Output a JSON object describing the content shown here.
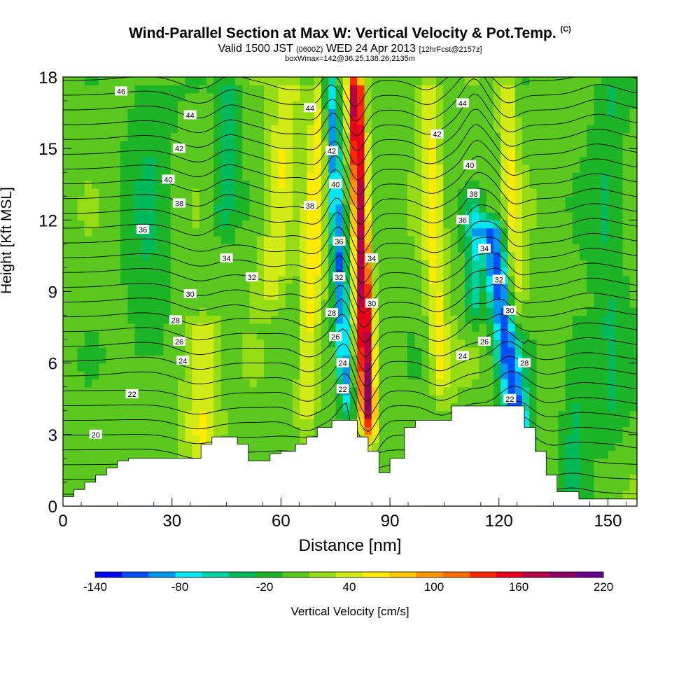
{
  "header": {
    "title": "Wind-Parallel Section at Max W: Vertical Velocity & Pot.Temp.",
    "title_mark": "(C)",
    "valid_prefix": "Valid 1500 JST",
    "valid_utc": "(0600Z)",
    "valid_date": "WED 24 Apr 2013",
    "forecast": "[12hrFcst@2157z]",
    "box_info": "boxWmax=142@36.25,138.26,2135m"
  },
  "chart_data": {
    "type": "heatmap",
    "xlabel": "Distance [nm]",
    "ylabel": "Height [Kft MSL]",
    "xlim": [
      0,
      158
    ],
    "ylim": [
      0,
      18
    ],
    "x_ticks": [
      "0",
      "30",
      "60",
      "90",
      "120",
      "150"
    ],
    "y_ticks": [
      "0",
      "3",
      "6",
      "9",
      "12",
      "15",
      "18"
    ],
    "colorbar": {
      "label": "Vertical Velocity [cm/s]",
      "ticks": [
        "-140",
        "-80",
        "-20",
        "40",
        "100",
        "160",
        "220"
      ],
      "levels": [
        -140,
        -120,
        -100,
        -80,
        -60,
        -40,
        -20,
        0,
        20,
        40,
        60,
        80,
        100,
        120,
        140,
        160,
        180,
        200,
        220
      ],
      "colors": [
        "#0000ee",
        "#0050f5",
        "#0096f0",
        "#00e6f0",
        "#00d2a0",
        "#00b95a",
        "#1eb428",
        "#5ac81e",
        "#96dc14",
        "#d2eb14",
        "#ffeb00",
        "#ffc800",
        "#ff9600",
        "#ff6e00",
        "#ff2800",
        "#e6001e",
        "#b4004b",
        "#8c0064",
        "#64008c"
      ]
    },
    "terrain": [
      [
        0,
        0.4
      ],
      [
        3,
        0.4
      ],
      [
        3,
        0.7
      ],
      [
        6,
        0.7
      ],
      [
        6,
        1.0
      ],
      [
        9,
        1.0
      ],
      [
        9,
        1.3
      ],
      [
        12,
        1.3
      ],
      [
        12,
        1.6
      ],
      [
        15,
        1.6
      ],
      [
        15,
        1.9
      ],
      [
        18,
        1.9
      ],
      [
        18,
        2.0
      ],
      [
        38,
        2.0
      ],
      [
        38,
        2.6
      ],
      [
        41,
        2.6
      ],
      [
        41,
        2.9
      ],
      [
        48,
        2.9
      ],
      [
        48,
        2.6
      ],
      [
        51,
        2.6
      ],
      [
        51,
        1.9
      ],
      [
        57,
        1.9
      ],
      [
        57,
        2.2
      ],
      [
        60,
        2.2
      ],
      [
        60,
        2.3
      ],
      [
        64,
        2.3
      ],
      [
        64,
        2.6
      ],
      [
        67,
        2.6
      ],
      [
        67,
        2.9
      ],
      [
        70,
        2.9
      ],
      [
        70,
        3.3
      ],
      [
        74,
        3.3
      ],
      [
        74,
        3.6
      ],
      [
        81,
        3.6
      ],
      [
        81,
        2.9
      ],
      [
        84,
        2.9
      ],
      [
        84,
        2.3
      ],
      [
        87,
        2.3
      ],
      [
        87,
        1.4
      ],
      [
        90,
        1.4
      ],
      [
        90,
        2.0
      ],
      [
        94,
        2.0
      ],
      [
        94,
        3.3
      ],
      [
        97,
        3.3
      ],
      [
        97,
        3.6
      ],
      [
        107,
        3.6
      ],
      [
        107,
        4.2
      ],
      [
        127,
        4.2
      ],
      [
        127,
        3.3
      ],
      [
        130,
        3.3
      ],
      [
        130,
        2.3
      ],
      [
        133,
        2.3
      ],
      [
        133,
        1.3
      ],
      [
        136,
        1.3
      ],
      [
        136,
        0.6
      ],
      [
        142,
        0.6
      ],
      [
        142,
        0.3
      ],
      [
        158,
        0.3
      ]
    ],
    "velocity_features": [
      {
        "x": 84,
        "z0": 3.5,
        "z1": 18,
        "tilt": -0.25,
        "width": 2.2,
        "w": 190
      },
      {
        "x": 78,
        "z0": 4.5,
        "z1": 18,
        "tilt": -0.35,
        "width": 2.0,
        "w": -110
      },
      {
        "x": 126,
        "z0": 2.5,
        "z1": 12,
        "tilt": -0.9,
        "width": 3.5,
        "w": -120
      },
      {
        "x": 38,
        "z0": 2.5,
        "z1": 8,
        "tilt": 0,
        "width": 5,
        "w": 55
      },
      {
        "x": 57,
        "z0": 9,
        "z1": 18,
        "tilt": 0.6,
        "width": 4,
        "w": 50
      },
      {
        "x": 67,
        "z0": 4,
        "z1": 18,
        "tilt": 0.3,
        "width": 3,
        "w": 60
      },
      {
        "x": 104,
        "z0": 5,
        "z1": 18,
        "tilt": -0.3,
        "width": 3,
        "w": 55
      },
      {
        "x": 125,
        "z0": 8,
        "z1": 18,
        "tilt": -0.3,
        "width": 2.5,
        "w": 50
      },
      {
        "x": 44,
        "z0": 12,
        "z1": 18,
        "tilt": 0.3,
        "width": 3,
        "w": -50
      },
      {
        "x": 23,
        "z0": 6,
        "z1": 18,
        "tilt": 0.1,
        "width": 7,
        "w": -25
      },
      {
        "x": 150,
        "z0": 3,
        "z1": 18,
        "tilt": 0,
        "width": 5,
        "w": -30
      },
      {
        "x": 140,
        "z0": 1,
        "z1": 8,
        "tilt": 0.4,
        "width": 4,
        "w": -35
      },
      {
        "x": 113,
        "z0": 8,
        "z1": 13,
        "tilt": 0,
        "width": 2,
        "w": -60
      }
    ],
    "isentropes": [
      16,
      17,
      18,
      19,
      20,
      21,
      22,
      23,
      24,
      25,
      26,
      27,
      28,
      29,
      30,
      31,
      32,
      33,
      34,
      35,
      36,
      37,
      38,
      39,
      40,
      41,
      42,
      43,
      44,
      45,
      46,
      47,
      48
    ],
    "contour_labels": [
      {
        "text": "46",
        "x": 16,
        "z": 17.4
      },
      {
        "text": "44",
        "x": 35,
        "z": 16.4
      },
      {
        "text": "44",
        "x": 68,
        "z": 16.7
      },
      {
        "text": "44",
        "x": 110,
        "z": 16.9
      },
      {
        "text": "42",
        "x": 32,
        "z": 15.0
      },
      {
        "text": "42",
        "x": 74,
        "z": 14.9
      },
      {
        "text": "42",
        "x": 103,
        "z": 15.6
      },
      {
        "text": "40",
        "x": 29,
        "z": 13.7
      },
      {
        "text": "40",
        "x": 75,
        "z": 13.5
      },
      {
        "text": "40",
        "x": 112,
        "z": 14.3
      },
      {
        "text": "38",
        "x": 32,
        "z": 12.7
      },
      {
        "text": "38",
        "x": 68,
        "z": 12.6
      },
      {
        "text": "38",
        "x": 113,
        "z": 13.1
      },
      {
        "text": "36",
        "x": 22,
        "z": 11.6
      },
      {
        "text": "36",
        "x": 76,
        "z": 11.1
      },
      {
        "text": "36",
        "x": 110,
        "z": 12.0
      },
      {
        "text": "34",
        "x": 45,
        "z": 10.4
      },
      {
        "text": "34",
        "x": 85,
        "z": 10.4
      },
      {
        "text": "34",
        "x": 116,
        "z": 10.8
      },
      {
        "text": "32",
        "x": 52,
        "z": 9.6
      },
      {
        "text": "32",
        "x": 76,
        "z": 9.6
      },
      {
        "text": "32",
        "x": 120,
        "z": 9.5
      },
      {
        "text": "30",
        "x": 35,
        "z": 8.9
      },
      {
        "text": "30",
        "x": 85,
        "z": 8.5
      },
      {
        "text": "30",
        "x": 123,
        "z": 8.2
      },
      {
        "text": "28",
        "x": 31,
        "z": 7.8
      },
      {
        "text": "28",
        "x": 74,
        "z": 8.1
      },
      {
        "text": "28",
        "x": 127,
        "z": 6.0
      },
      {
        "text": "26",
        "x": 32,
        "z": 6.9
      },
      {
        "text": "26",
        "x": 75,
        "z": 7.1
      },
      {
        "text": "26",
        "x": 116,
        "z": 6.9
      },
      {
        "text": "24",
        "x": 33,
        "z": 6.1
      },
      {
        "text": "24",
        "x": 77,
        "z": 6.0
      },
      {
        "text": "24",
        "x": 110,
        "z": 6.3
      },
      {
        "text": "22",
        "x": 19,
        "z": 4.7
      },
      {
        "text": "22",
        "x": 77,
        "z": 4.9
      },
      {
        "text": "22",
        "x": 123,
        "z": 4.5
      },
      {
        "text": "20",
        "x": 9,
        "z": 3.0
      }
    ]
  }
}
